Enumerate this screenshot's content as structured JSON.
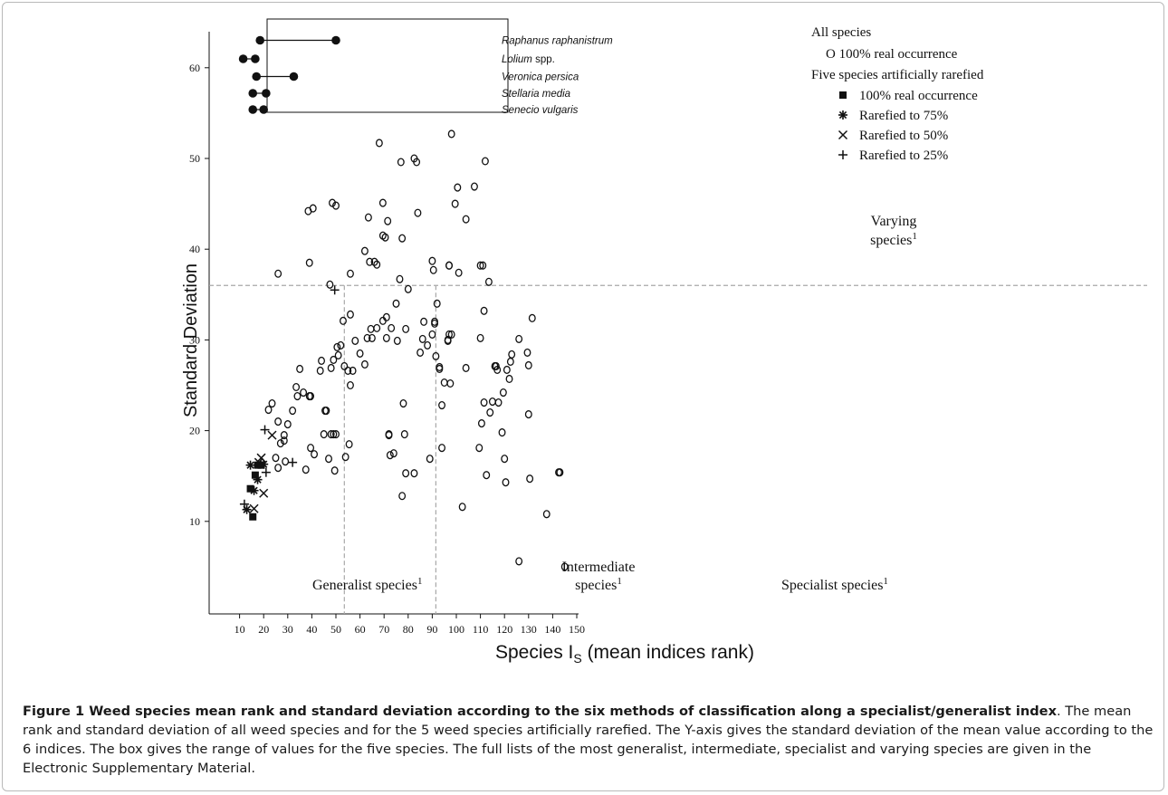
{
  "caption": {
    "title": "Figure 1 Weed species mean rank and standard deviation according to the six methods of classification along a specialist/generalist index",
    "text": ". The mean rank and standard deviation of all weed species and for the 5 weed species artificially rarefied. The Y-axis gives the standard deviation of the mean value according to the 6 indices. The box gives the range of values for the five species. The full lists of the most generalist, intermediate, specialist and varying species are given in the Electronic Supplementary Material."
  },
  "chart_data": {
    "type": "scatter",
    "xlabel_main": "Species I",
    "xlabel_sub": "S",
    "xlabel_rest": " (mean indices rank)",
    "ylabel": "Standard Deviation",
    "xlim": [
      0,
      150
    ],
    "ylim": [
      0,
      65
    ],
    "xticks": [
      10,
      20,
      30,
      40,
      50,
      60,
      70,
      80,
      90,
      100,
      110,
      120,
      130,
      140,
      150
    ],
    "yticks": [
      10,
      20,
      30,
      40,
      50,
      60
    ],
    "thresholds": {
      "x": [
        53.5,
        91.5
      ],
      "y": 36
    },
    "regions": {
      "generalist": "Generalist species",
      "intermediate_1": "Intermediate",
      "intermediate_2": "species",
      "specialist": "Specialist species",
      "varying_1": "Varying",
      "varying_2": "species",
      "superscript": "1"
    },
    "legend": {
      "all_title": "All species",
      "all_item": "O  100% real occurrence",
      "five_title": "Five species artificially rarefied",
      "items": [
        {
          "marker": "square",
          "label": "100% real occurrence"
        },
        {
          "marker": "asterisk",
          "label": "Rarefied to 75%"
        },
        {
          "marker": "cross",
          "label": "Rarefied to 50%"
        },
        {
          "marker": "plus",
          "label": "Rarefied to 25%"
        }
      ]
    },
    "range_box": [
      {
        "name": "Raphanus raphanistrum",
        "min": 18.5,
        "max": 50
      },
      {
        "name": "Lolium spp.",
        "min": 11.5,
        "max": 16.5
      },
      {
        "name": "Veronica persica",
        "min": 17,
        "max": 32.5
      },
      {
        "name": "Stellaria media",
        "min": 15.5,
        "max": 21
      },
      {
        "name": "Senecio vulgaris",
        "min": 15.5,
        "max": 20
      }
    ],
    "series": [
      {
        "marker": "open-circle",
        "x": [
          26,
          38.5,
          39,
          40.5,
          48.5,
          50,
          56,
          39,
          45.5,
          53,
          62,
          63.5,
          64,
          66,
          69.5,
          70.5,
          71.5,
          63,
          67,
          71,
          69.5,
          77.5,
          80,
          79,
          76.5,
          84,
          90,
          90.5,
          91,
          97,
          97,
          101,
          99.5,
          104,
          82.5,
          83.5,
          77,
          68,
          98,
          112,
          107.5,
          110,
          111.5,
          113.5,
          44,
          33.5,
          34,
          35,
          36.5,
          39.5,
          30,
          43.5,
          45,
          52,
          53.5,
          48,
          49,
          50.5,
          51,
          57,
          55,
          58,
          56,
          62,
          60,
          64.5,
          65,
          67,
          69.5,
          71,
          73,
          75,
          72,
          74,
          78,
          85,
          86,
          86.5,
          88,
          91,
          92,
          91.5,
          93,
          94,
          96.5,
          97,
          98,
          97.5,
          95,
          93,
          94,
          90,
          78.5,
          79,
          82.5,
          72,
          72.5,
          77.5,
          75.5,
          89,
          110,
          110.5,
          109.5,
          111,
          115,
          116,
          116.5,
          117,
          117.5,
          119.5,
          120,
          121,
          122.5,
          123,
          122,
          126,
          130,
          129.5,
          131.5,
          114,
          119,
          112.5,
          120.5,
          130.5,
          130,
          102.5,
          126,
          137.5,
          142.5,
          143,
          145,
          104,
          111.5,
          100.5,
          22,
          23.5,
          26,
          27,
          28.5,
          26,
          25,
          29,
          32,
          37.5,
          39.5,
          47,
          49.5,
          55.5,
          54,
          41,
          48,
          56,
          28.5,
          46,
          50,
          49,
          47.5,
          96.5
        ],
        "y": [
          37.3,
          44.2,
          38.5,
          44.5,
          45.1,
          44.8,
          37.3,
          23.8,
          22.2,
          32.1,
          39.8,
          43.5,
          38.6,
          38.6,
          45.1,
          41.3,
          43.1,
          30.2,
          31.3,
          30.2,
          41.5,
          41.2,
          35.6,
          31.2,
          36.7,
          44,
          38.7,
          37.7,
          31.8,
          30.6,
          38.2,
          37.4,
          45,
          43.3,
          50,
          49.6,
          49.6,
          51.7,
          52.7,
          49.7,
          46.9,
          38.2,
          33.2,
          36.4,
          27.7,
          24.8,
          23.8,
          26.8,
          24.2,
          23.8,
          20.7,
          26.6,
          19.6,
          29.4,
          27.1,
          26.9,
          27.8,
          29.2,
          28.3,
          26.6,
          26.6,
          29.9,
          32.8,
          27.3,
          28.5,
          31.2,
          30.2,
          38.3,
          32.1,
          32.5,
          31.3,
          34,
          19.5,
          17.5,
          23,
          28.6,
          30.1,
          32,
          29.4,
          32,
          34,
          28.2,
          27,
          22.8,
          30,
          38.2,
          30.6,
          25.2,
          25.3,
          26.8,
          18.1,
          30.6,
          19.6,
          15.3,
          15.3,
          19.6,
          17.3,
          12.8,
          29.9,
          16.9,
          30.2,
          20.8,
          18.1,
          38.2,
          23.2,
          27.1,
          27.1,
          26.7,
          23.1,
          24.2,
          16.9,
          26.7,
          27.6,
          28.4,
          25.7,
          30.1,
          27.2,
          28.6,
          32.4,
          22,
          19.8,
          15.1,
          14.3,
          14.7,
          21.8,
          11.6,
          5.6,
          10.8,
          15.4,
          15.4,
          5,
          26.9,
          23.1,
          46.8,
          22.3,
          23,
          21,
          18.6,
          18.9,
          15.9,
          17,
          16.6,
          22.2,
          15.7,
          18.1,
          16.9,
          15.6,
          18.5,
          17.1,
          17.4,
          19.6,
          25,
          19.5,
          22.2,
          19.6,
          19.6,
          36.1,
          29.9
        ]
      },
      {
        "marker": "square",
        "x": [
          14.5,
          15.5,
          16.5,
          17.5,
          19
        ],
        "y": [
          13.6,
          10.5,
          15.1,
          16.2,
          16.2
        ]
      },
      {
        "marker": "asterisk",
        "x": [
          13,
          14.5,
          16,
          17.5,
          20
        ],
        "y": [
          11.3,
          16.2,
          13.4,
          14.6,
          16.3
        ]
      },
      {
        "marker": "cross",
        "x": [
          16,
          18,
          19,
          20,
          23.5
        ],
        "y": [
          11.4,
          16.5,
          17,
          13.1,
          19.5
        ]
      },
      {
        "marker": "plus",
        "x": [
          12,
          20.5,
          21,
          32,
          49.5
        ],
        "y": [
          11.9,
          20.1,
          15.4,
          16.5,
          35.5
        ]
      }
    ]
  }
}
